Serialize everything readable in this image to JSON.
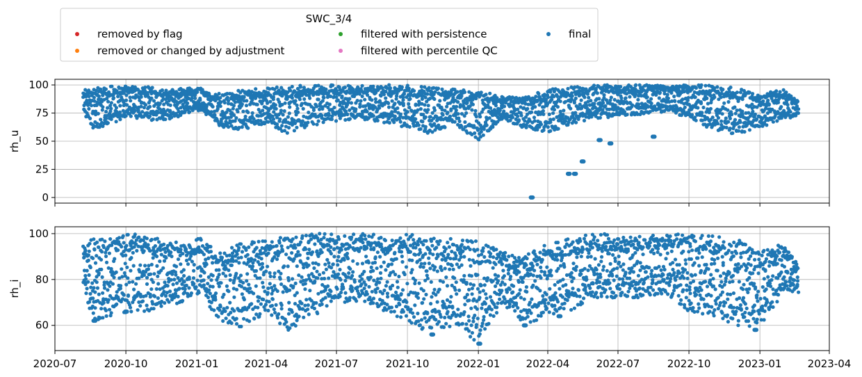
{
  "chart_data": {
    "type": "scatter",
    "legend": {
      "title": "SWC_3/4",
      "placement": "top-left (outside plots)",
      "entries": [
        {
          "label": "removed by flag",
          "color": "#d62728"
        },
        {
          "label": "removed or changed by adjustment",
          "color": "#ff7f0e"
        },
        {
          "label": "filtered with persistence",
          "color": "#2ca02c"
        },
        {
          "label": "filtered with percentile QC",
          "color": "#e377c2"
        },
        {
          "label": "final",
          "color": "#1f77b4"
        }
      ]
    },
    "x_axis": {
      "type": "date",
      "range": [
        "2020-07-01",
        "2023-04-01"
      ],
      "ticks": [
        "2020-07",
        "2020-10",
        "2021-01",
        "2021-04",
        "2021-07",
        "2021-10",
        "2022-01",
        "2022-04",
        "2022-07",
        "2022-10",
        "2023-01",
        "2023-04"
      ],
      "grid": true
    },
    "panels": [
      {
        "ylabel": "rh_u",
        "ylim": [
          -5,
          105
        ],
        "yticks": [
          0,
          25,
          50,
          75,
          100
        ],
        "grid": true,
        "series": [
          {
            "name": "final",
            "color": "#1f77b4",
            "envelope": [
              {
                "x": "2020-08-07",
                "min": 75,
                "max": 96
              },
              {
                "x": "2020-08-20",
                "min": 60,
                "max": 98
              },
              {
                "x": "2020-09-10",
                "min": 65,
                "max": 99
              },
              {
                "x": "2020-10-05",
                "min": 72,
                "max": 100
              },
              {
                "x": "2020-11-01",
                "min": 68,
                "max": 98
              },
              {
                "x": "2020-12-01",
                "min": 70,
                "max": 96
              },
              {
                "x": "2021-01-01",
                "min": 78,
                "max": 98
              },
              {
                "x": "2021-02-01",
                "min": 62,
                "max": 92
              },
              {
                "x": "2021-03-01",
                "min": 60,
                "max": 96
              },
              {
                "x": "2021-04-01",
                "min": 66,
                "max": 97
              },
              {
                "x": "2021-05-01",
                "min": 56,
                "max": 99
              },
              {
                "x": "2021-06-01",
                "min": 64,
                "max": 100
              },
              {
                "x": "2021-07-01",
                "min": 68,
                "max": 100
              },
              {
                "x": "2021-08-01",
                "min": 70,
                "max": 100
              },
              {
                "x": "2021-09-01",
                "min": 66,
                "max": 100
              },
              {
                "x": "2021-10-01",
                "min": 62,
                "max": 100
              },
              {
                "x": "2021-11-01",
                "min": 56,
                "max": 98
              },
              {
                "x": "2021-12-01",
                "min": 66,
                "max": 96
              },
              {
                "x": "2022-01-01",
                "min": 50,
                "max": 96
              },
              {
                "x": "2022-02-01",
                "min": 70,
                "max": 90
              },
              {
                "x": "2022-03-01",
                "min": 62,
                "max": 90
              },
              {
                "x": "2022-04-01",
                "min": 58,
                "max": 96
              },
              {
                "x": "2022-05-01",
                "min": 64,
                "max": 98
              },
              {
                "x": "2022-06-01",
                "min": 70,
                "max": 100
              },
              {
                "x": "2022-07-01",
                "min": 72,
                "max": 100
              },
              {
                "x": "2022-08-01",
                "min": 74,
                "max": 100
              },
              {
                "x": "2022-09-01",
                "min": 76,
                "max": 100
              },
              {
                "x": "2022-10-01",
                "min": 70,
                "max": 100
              },
              {
                "x": "2022-11-01",
                "min": 60,
                "max": 100
              },
              {
                "x": "2022-12-01",
                "min": 56,
                "max": 98
              },
              {
                "x": "2023-01-01",
                "min": 62,
                "max": 92
              },
              {
                "x": "2023-02-01",
                "min": 70,
                "max": 96
              },
              {
                "x": "2023-02-20",
                "min": 72,
                "max": 86
              }
            ],
            "outliers": [
              {
                "x": "2022-03-10",
                "y": 0
              },
              {
                "x": "2022-04-27",
                "y": 21
              },
              {
                "x": "2022-05-05",
                "y": 21
              },
              {
                "x": "2022-05-15",
                "y": 32
              },
              {
                "x": "2022-06-06",
                "y": 51
              },
              {
                "x": "2022-06-20",
                "y": 48
              },
              {
                "x": "2022-08-15",
                "y": 54
              }
            ]
          }
        ]
      },
      {
        "ylabel": "rh_i",
        "ylim": [
          49,
          103
        ],
        "yticks": [
          60,
          80,
          100
        ],
        "grid": true,
        "series": [
          {
            "name": "final",
            "color": "#1f77b4",
            "envelope": [
              {
                "x": "2020-08-07",
                "min": 76,
                "max": 96
              },
              {
                "x": "2020-08-20",
                "min": 62,
                "max": 98
              },
              {
                "x": "2020-09-15",
                "min": 64,
                "max": 99
              },
              {
                "x": "2020-10-10",
                "min": 66,
                "max": 100
              },
              {
                "x": "2020-11-10",
                "min": 66,
                "max": 98
              },
              {
                "x": "2020-12-10",
                "min": 70,
                "max": 96
              },
              {
                "x": "2021-01-05",
                "min": 74,
                "max": 98
              },
              {
                "x": "2021-02-01",
                "min": 62,
                "max": 92
              },
              {
                "x": "2021-03-01",
                "min": 58,
                "max": 96
              },
              {
                "x": "2021-04-01",
                "min": 66,
                "max": 98
              },
              {
                "x": "2021-05-01",
                "min": 57,
                "max": 99
              },
              {
                "x": "2021-06-01",
                "min": 64,
                "max": 100
              },
              {
                "x": "2021-07-01",
                "min": 70,
                "max": 100
              },
              {
                "x": "2021-08-01",
                "min": 70,
                "max": 100
              },
              {
                "x": "2021-09-01",
                "min": 66,
                "max": 100
              },
              {
                "x": "2021-10-01",
                "min": 62,
                "max": 100
              },
              {
                "x": "2021-11-01",
                "min": 56,
                "max": 98
              },
              {
                "x": "2021-12-01",
                "min": 60,
                "max": 98
              },
              {
                "x": "2022-01-01",
                "min": 52,
                "max": 98
              },
              {
                "x": "2022-02-01",
                "min": 70,
                "max": 92
              },
              {
                "x": "2022-03-01",
                "min": 60,
                "max": 90
              },
              {
                "x": "2022-04-01",
                "min": 64,
                "max": 96
              },
              {
                "x": "2022-05-01",
                "min": 66,
                "max": 98
              },
              {
                "x": "2022-06-01",
                "min": 72,
                "max": 100
              },
              {
                "x": "2022-07-01",
                "min": 72,
                "max": 100
              },
              {
                "x": "2022-08-01",
                "min": 72,
                "max": 100
              },
              {
                "x": "2022-09-01",
                "min": 74,
                "max": 100
              },
              {
                "x": "2022-10-01",
                "min": 66,
                "max": 100
              },
              {
                "x": "2022-11-01",
                "min": 64,
                "max": 100
              },
              {
                "x": "2022-12-01",
                "min": 58,
                "max": 98
              },
              {
                "x": "2023-01-01",
                "min": 60,
                "max": 92
              },
              {
                "x": "2023-02-01",
                "min": 74,
                "max": 96
              },
              {
                "x": "2023-02-20",
                "min": 74,
                "max": 86
              }
            ],
            "outliers": [
              {
                "x": "2020-08-20",
                "y": 62
              },
              {
                "x": "2020-09-30",
                "y": 66
              },
              {
                "x": "2021-11-01",
                "y": 56
              },
              {
                "x": "2022-01-01",
                "y": 52
              },
              {
                "x": "2022-03-01",
                "y": 60
              },
              {
                "x": "2022-04-15",
                "y": 64
              },
              {
                "x": "2022-12-25",
                "y": 58
              }
            ]
          }
        ]
      }
    ]
  }
}
